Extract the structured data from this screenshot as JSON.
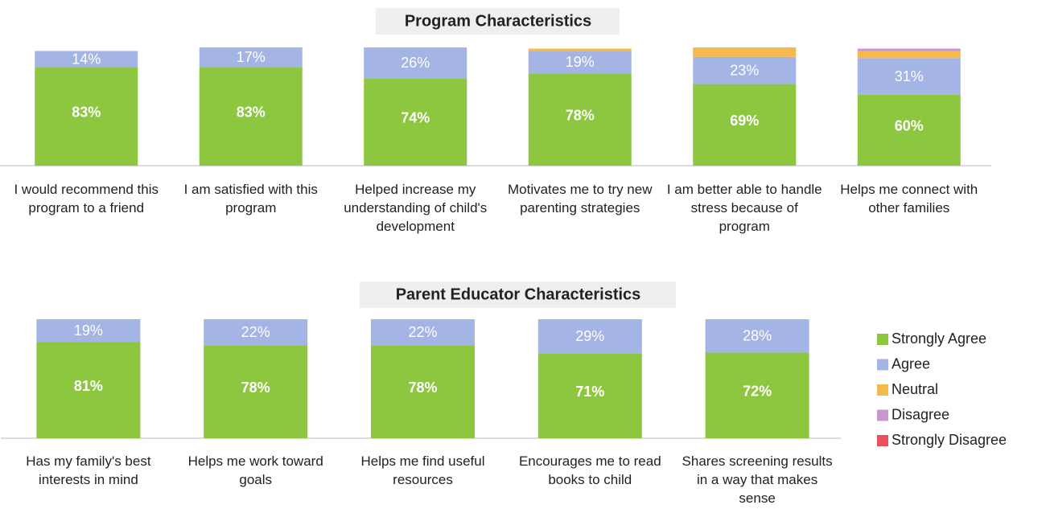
{
  "chart_data": [
    {
      "type": "stacked-bar",
      "title": "Program Characteristics",
      "categories": [
        "I would recommend this program to a friend",
        "I am satisfied with this program",
        "Helped increase my understanding of child's development",
        "Motivates me to try new parenting strategies",
        "I am better able to handle stress because of program",
        "Helps me connect with other families"
      ],
      "ylim": [
        0,
        100
      ],
      "series": [
        {
          "color": "#8dc63f",
          "values": [
            83,
            83,
            74,
            78,
            69,
            60
          ],
          "value_labels": [
            "83%",
            "83%",
            "74%",
            "78%",
            "69%",
            "60%"
          ]
        },
        {
          "color": "#a4b4e4",
          "values": [
            14,
            17,
            26,
            19,
            23,
            31
          ],
          "value_labels": [
            "14%",
            "17%",
            "26%",
            "19%",
            "23%",
            "31%"
          ]
        },
        {
          "color": "#f5b94c",
          "values": [
            0,
            0,
            0,
            2,
            8,
            6
          ]
        },
        {
          "color": "#c896d0",
          "values": [
            0,
            0,
            0,
            0,
            0,
            2
          ]
        },
        {
          "color": "#e8505b",
          "values": [
            0,
            0,
            0,
            0,
            0,
            0
          ]
        }
      ]
    },
    {
      "type": "stacked-bar",
      "title": "Parent Educator Characteristics",
      "categories": [
        "Has my family's best interests in mind",
        "Helps me work toward goals",
        "Helps me find useful resources",
        "Encourages me to read books to child",
        "Shares screening results in a way that makes sense"
      ],
      "ylim": [
        0,
        100
      ],
      "legend": "right",
      "series": [
        {
          "name": "Strongly Agree",
          "color": "#8dc63f",
          "values": [
            81,
            78,
            78,
            71,
            72
          ],
          "value_labels": [
            "81%",
            "78%",
            "78%",
            "71%",
            "72%"
          ]
        },
        {
          "name": "Agree",
          "color": "#a4b4e4",
          "values": [
            19,
            22,
            22,
            29,
            28
          ],
          "value_labels": [
            "19%",
            "22%",
            "22%",
            "29%",
            "28%"
          ]
        },
        {
          "name": "Neutral",
          "color": "#f5b94c",
          "values": [
            0,
            0,
            0,
            0,
            0
          ]
        },
        {
          "name": "Disagree",
          "color": "#c896d0",
          "values": [
            0,
            0,
            0,
            0,
            0
          ]
        },
        {
          "name": "Strongly Disagree",
          "color": "#e8505b",
          "values": [
            0,
            0,
            0,
            0,
            0
          ]
        }
      ]
    }
  ]
}
